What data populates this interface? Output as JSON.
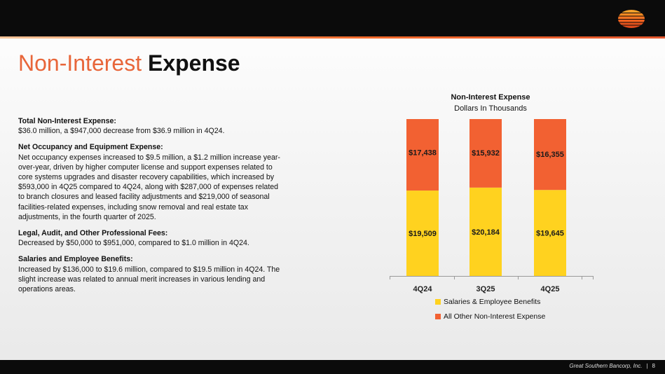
{
  "header": {
    "title_part1": "Non-Interest ",
    "title_part2": "Expense"
  },
  "colors": {
    "accent": "#e8663a",
    "salaries": "#ffd21f",
    "other": "#f26132"
  },
  "sections": [
    {
      "heading": "Total Non-Interest Expense:",
      "body": "$36.0 million, a $947,000 decrease from $36.9 million in 4Q24."
    },
    {
      "heading": "Net Occupancy and Equipment Expense:",
      "body": "Net occupancy expenses increased to $9.5 million, a $1.2 million increase year-over-year, driven by higher computer license and support expenses related to core systems upgrades and disaster recovery capabilities, which increased by $593,000 in 4Q25 compared to 4Q24, along with $287,000 of expenses related to branch closures and leased facility adjustments and $219,000 of seasonal facilities-related expenses, including snow removal and real estate tax adjustments, in the fourth quarter of 2025."
    },
    {
      "heading": "Legal, Audit, and Other Professional Fees:",
      "body": "Decreased by $50,000 to $951,000, compared to $1.0 million in 4Q24."
    },
    {
      "heading": "Salaries and Employee Benefits:",
      "body": "Increased by $136,000 to $19.6 million, compared to $19.5 million in 4Q24. The slight increase was related to annual merit increases in various lending and operations areas."
    }
  ],
  "chart_data": {
    "type": "bar",
    "stacked": true,
    "title": "Non-Interest Expense",
    "subtitle": "Dollars In Thousands",
    "categories": [
      "4Q24",
      "3Q25",
      "4Q25"
    ],
    "series": [
      {
        "name": "Salaries & Employee Benefits",
        "values": [
          19509,
          20184,
          19645
        ],
        "labels": [
          "$19,509",
          "$20,184",
          "$19,645"
        ],
        "color": "#ffd21f"
      },
      {
        "name": "All Other Non-Interest Expense",
        "values": [
          17438,
          15932,
          16355
        ],
        "labels": [
          "$17,438",
          "$15,932",
          "$16,355"
        ],
        "color": "#f26132"
      }
    ],
    "ylim": [
      0,
      40000
    ],
    "grid": false,
    "legend": "bottom"
  },
  "footer": {
    "company": "Great Southern Bancorp, Inc.",
    "separator": "|",
    "page": "8"
  }
}
